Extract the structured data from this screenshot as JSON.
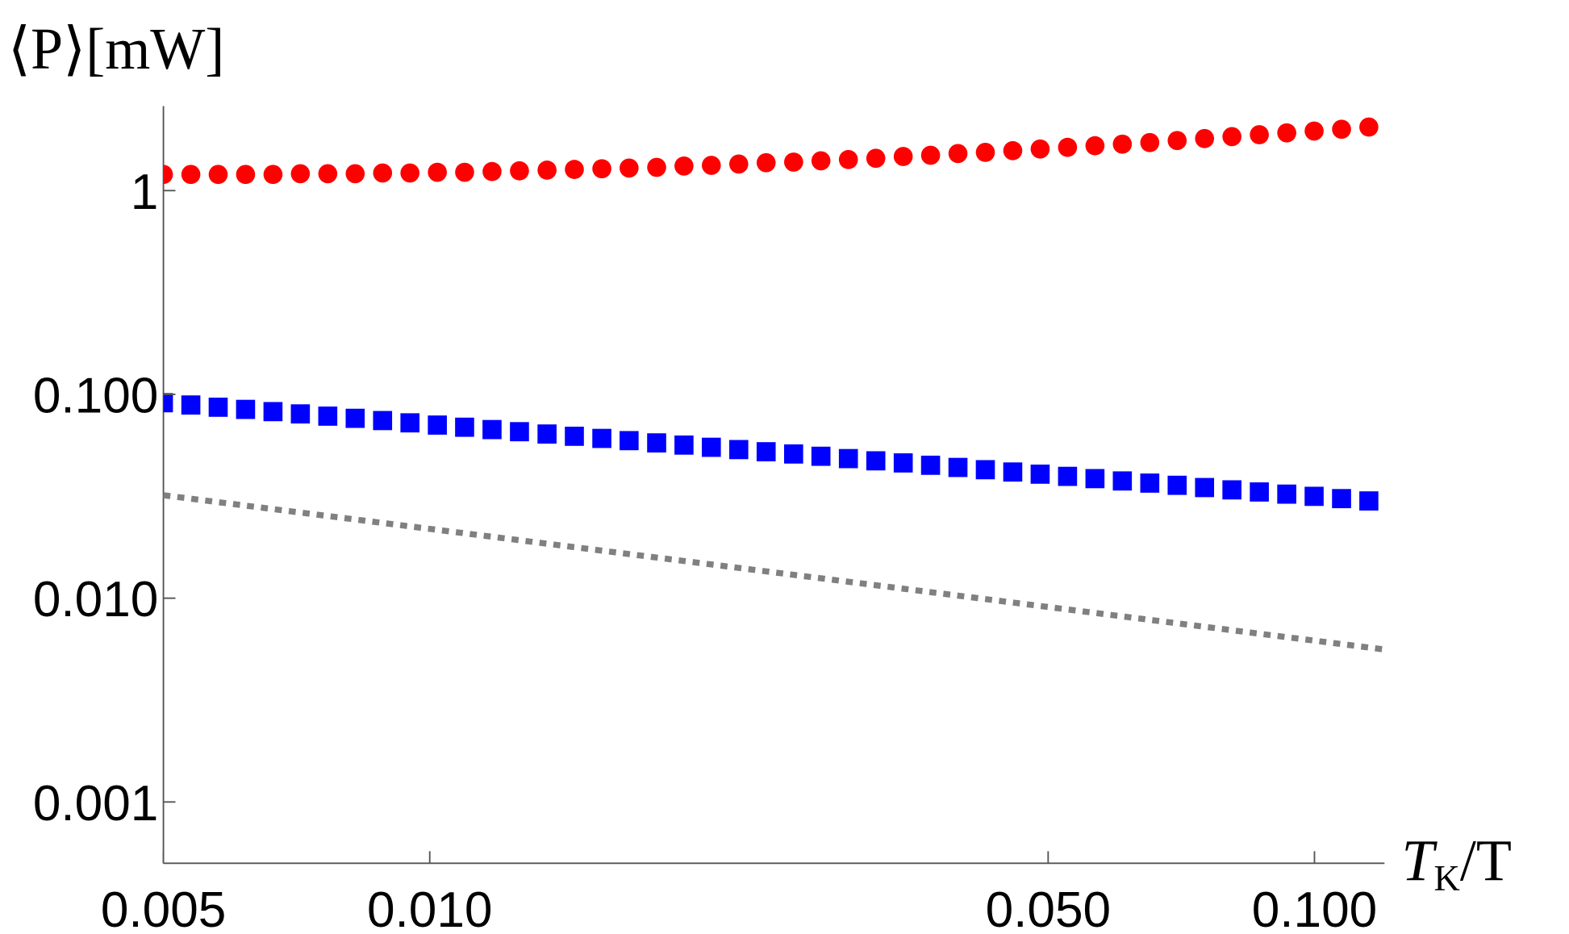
{
  "chart_data": {
    "type": "scatter",
    "xlabel_parts": [
      "T",
      "K",
      "/T"
    ],
    "ylabel": "⟨P⟩[mW]",
    "xscale": "log",
    "yscale": "log",
    "xlim": [
      0.005,
      0.12
    ],
    "ylim": [
      0.0005,
      2.6
    ],
    "xticks": [
      0.005,
      {
        "value": 0.01,
        "label": "0.010"
      },
      {
        "value": 0.05,
        "label": "0.050"
      },
      {
        "value": 0.1,
        "label": "0.100"
      }
    ],
    "yticks": [
      {
        "value": 0.001,
        "label": "0.001"
      },
      {
        "value": 0.01,
        "label": "0.010"
      },
      {
        "value": 0.1,
        "label": "0.100"
      },
      1
    ],
    "x": [
      0.005,
      0.00537,
      0.005766,
      0.006192,
      0.00665,
      0.007141,
      0.007669,
      0.008236,
      0.008845,
      0.009498,
      0.0102,
      0.01095,
      0.01176,
      0.01263,
      0.01357,
      0.01457,
      0.01565,
      0.0168,
      0.01805,
      0.01938,
      0.02081,
      0.02235,
      0.024,
      0.02578,
      0.02768,
      0.02973,
      0.03193,
      0.03429,
      0.03682,
      0.03954,
      0.04246,
      0.0456,
      0.04897,
      0.05259,
      0.05648,
      0.06065,
      0.06514,
      0.06995,
      0.07512,
      0.08067,
      0.08663,
      0.09304,
      0.09991,
      0.1073,
      0.1152
    ],
    "series": [
      {
        "color": "#ff0000",
        "marker": "circle",
        "values": [
          1.2,
          1.2,
          1.2,
          1.2,
          1.2,
          1.21,
          1.21,
          1.21,
          1.22,
          1.22,
          1.23,
          1.23,
          1.24,
          1.25,
          1.26,
          1.27,
          1.28,
          1.29,
          1.3,
          1.32,
          1.33,
          1.35,
          1.37,
          1.38,
          1.4,
          1.42,
          1.44,
          1.47,
          1.49,
          1.52,
          1.54,
          1.57,
          1.6,
          1.63,
          1.66,
          1.69,
          1.72,
          1.76,
          1.8,
          1.84,
          1.88,
          1.92,
          1.96,
          2.0,
          2.05
        ]
      },
      {
        "color": "#0000ff",
        "marker": "square",
        "values": [
          0.091,
          0.0887,
          0.0865,
          0.0844,
          0.0823,
          0.0802,
          0.0782,
          0.0763,
          0.0744,
          0.0725,
          0.0707,
          0.069,
          0.0672,
          0.0656,
          0.0639,
          0.0623,
          0.0608,
          0.0593,
          0.0578,
          0.0564,
          0.055,
          0.0536,
          0.0523,
          0.051,
          0.0497,
          0.0484,
          0.0472,
          0.0461,
          0.0449,
          0.0438,
          0.0427,
          0.0416,
          0.0406,
          0.0396,
          0.0386,
          0.0376,
          0.0367,
          0.0358,
          0.0349,
          0.034,
          0.0332,
          0.0324,
          0.0316,
          0.0308,
          0.03
        ]
      },
      {
        "color": "#808080",
        "marker": "line",
        "style": "dotted",
        "x": [
          0.005,
          0.12
        ],
        "values": [
          0.032,
          0.0056
        ]
      }
    ]
  }
}
